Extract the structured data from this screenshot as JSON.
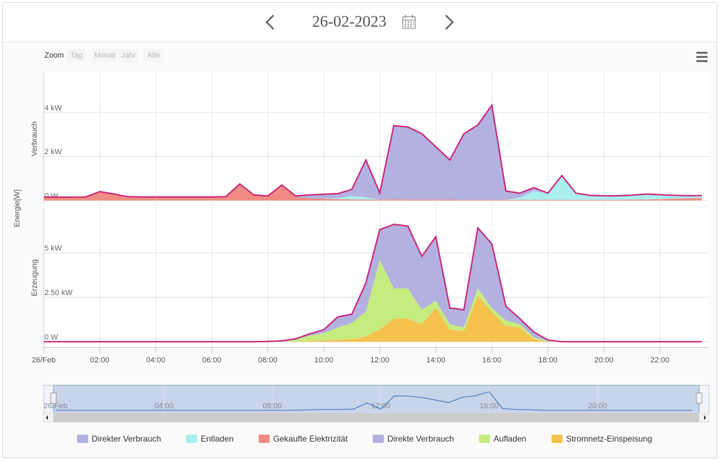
{
  "header": {
    "date": "26-02-2023"
  },
  "zoom": {
    "label": "Zoom",
    "buttons": [
      "Tag",
      "Monat",
      "Jahr",
      "Alle"
    ]
  },
  "chart_data": {
    "type": "area",
    "stacked": true,
    "grid": true,
    "y_axis_title": "Energie[W]",
    "x": [
      "00:00",
      "00:30",
      "01:00",
      "01:30",
      "02:00",
      "02:30",
      "03:00",
      "03:30",
      "04:00",
      "04:30",
      "05:00",
      "05:30",
      "06:00",
      "06:30",
      "07:00",
      "07:30",
      "08:00",
      "08:30",
      "09:00",
      "09:30",
      "10:00",
      "10:30",
      "11:00",
      "11:30",
      "12:00",
      "12:30",
      "13:00",
      "13:30",
      "14:00",
      "14:30",
      "15:00",
      "15:30",
      "16:00",
      "16:30",
      "17:00",
      "17:30",
      "18:00",
      "18:30",
      "19:00",
      "19:30",
      "20:00",
      "20:30",
      "21:00",
      "21:30",
      "22:00",
      "22:30",
      "23:00",
      "23:30"
    ],
    "xlim": [
      "00:00",
      "23:45"
    ],
    "xticks": [
      {
        "value": "00:00",
        "label": "26/Feb"
      },
      "02:00",
      "04:00",
      "06:00",
      "08:00",
      "10:00",
      "12:00",
      "14:00",
      "16:00",
      "18:00",
      "20:00",
      "22:00"
    ],
    "panels": [
      {
        "title": "Verbrauch",
        "ylim": [
          -200,
          5800
        ],
        "outline_color": "#cc2277",
        "yticks": [
          {
            "value": 0,
            "label": "0 W"
          },
          {
            "value": 2000,
            "label": "2 kW"
          },
          {
            "value": 4000,
            "label": "4 kW"
          }
        ],
        "series": [
          {
            "name": "Direkter Verbrauch",
            "color": "#b3b1e0",
            "values": [
              0,
              0,
              0,
              0,
              0,
              0,
              0,
              0,
              0,
              0,
              0,
              0,
              0,
              0,
              0,
              0,
              0,
              0,
              50,
              150,
              200,
              200,
              300,
              1700,
              300,
              3350,
              3300,
              3000,
              2400,
              1800,
              3000,
              3400,
              4300,
              400,
              200,
              150,
              0,
              0,
              0,
              0,
              0,
              0,
              0,
              0,
              0,
              0,
              0,
              0
            ]
          },
          {
            "name": "Entladen",
            "color": "#aaeeee",
            "values": [
              0,
              0,
              0,
              0,
              0,
              0,
              0,
              0,
              0,
              0,
              0,
              0,
              0,
              0,
              0,
              0,
              0,
              0,
              0,
              0,
              0,
              50,
              150,
              100,
              0,
              0,
              0,
              0,
              0,
              0,
              0,
              0,
              0,
              0,
              100,
              400,
              300,
              1100,
              300,
              200,
              180,
              180,
              200,
              250,
              200,
              150,
              120,
              100
            ]
          },
          {
            "name": "Gekaufte Elektrizität",
            "color": "#f08c84",
            "values": [
              150,
              150,
              150,
              160,
              400,
              300,
              170,
              160,
              160,
              160,
              160,
              160,
              160,
              170,
              750,
              250,
              200,
              700,
              150,
              100,
              80,
              60,
              50,
              40,
              40,
              50,
              40,
              40,
              40,
              40,
              30,
              30,
              30,
              30,
              30,
              30,
              30,
              30,
              30,
              30,
              30,
              30,
              40,
              40,
              60,
              80,
              100,
              120
            ]
          }
        ]
      },
      {
        "title": "Erzeugung",
        "ylim": [
          -300,
          7500
        ],
        "outline_color": "#cc2277",
        "yticks": [
          {
            "value": 0,
            "label": "0 W"
          },
          {
            "value": 2500,
            "label": "2.50 kW"
          },
          {
            "value": 5000,
            "label": "5 kW"
          }
        ],
        "series": [
          {
            "name": "Direkte Verbrauch",
            "color": "#b3b1e0",
            "values": [
              0,
              0,
              0,
              0,
              0,
              0,
              0,
              0,
              0,
              0,
              0,
              0,
              0,
              0,
              0,
              0,
              20,
              50,
              50,
              100,
              200,
              600,
              500,
              1600,
              1700,
              3600,
              3500,
              3000,
              3600,
              900,
              1000,
              3400,
              3600,
              800,
              300,
              300,
              70,
              0,
              0,
              0,
              0,
              0,
              0,
              0,
              0,
              0,
              0,
              0
            ]
          },
          {
            "name": "Aufladen",
            "color": "#c5ec7e",
            "values": [
              0,
              0,
              0,
              0,
              0,
              0,
              0,
              0,
              0,
              0,
              0,
              0,
              0,
              0,
              0,
              0,
              0,
              0,
              100,
              300,
              400,
              700,
              900,
              1400,
              3900,
              1700,
              1700,
              800,
              400,
              300,
              200,
              400,
              200,
              300,
              200,
              100,
              30,
              0,
              0,
              0,
              0,
              0,
              0,
              0,
              0,
              0,
              0,
              0
            ]
          },
          {
            "name": "Stromnetz-Einspeisung",
            "color": "#f5c24e",
            "values": [
              0,
              0,
              0,
              0,
              0,
              0,
              0,
              0,
              0,
              0,
              0,
              0,
              0,
              0,
              0,
              0,
              0,
              0,
              20,
              50,
              80,
              100,
              150,
              300,
              700,
              1300,
              1300,
              1000,
              1900,
              700,
              600,
              2600,
              1700,
              900,
              800,
              150,
              0,
              0,
              0,
              0,
              0,
              0,
              0,
              0,
              0,
              0,
              0,
              0
            ]
          }
        ]
      }
    ],
    "navigator": {
      "xticks": [
        {
          "value": "00:00",
          "label": "26/Feb"
        },
        "04:00",
        "08:00",
        "12:00",
        "16:00",
        "20:00"
      ]
    }
  }
}
